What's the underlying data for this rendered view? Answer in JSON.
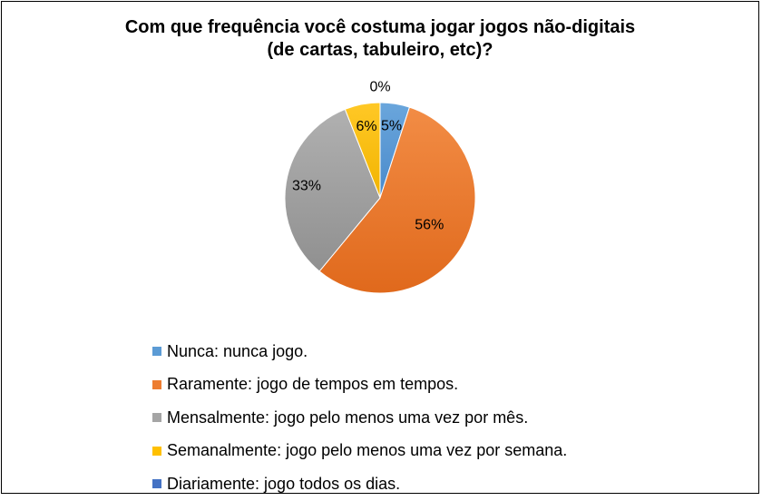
{
  "chart_data": {
    "type": "pie",
    "title": [
      "Com que frequência você costuma jogar jogos não-digitais",
      "(de cartas, tabuleiro, etc)?"
    ],
    "legend_position": "bottom",
    "series": [
      {
        "name": "Nunca: nunca jogo.",
        "value": 5,
        "label": "5%",
        "color": "#5B9BD5"
      },
      {
        "name": "Raramente: jogo de tempos em tempos.",
        "value": 56,
        "label": "56%",
        "color": "#ED7D31"
      },
      {
        "name": "Mensalmente: jogo pelo menos uma vez por mês.",
        "value": 33,
        "label": "33%",
        "color": "#A5A5A5"
      },
      {
        "name": "Semanalmente: jogo pelo menos uma vez por semana.",
        "value": 6,
        "label": "6%",
        "color": "#FFC000"
      },
      {
        "name": "Diariamente: jogo todos os dias.",
        "value": 0,
        "label": "0%",
        "color": "#4472C4"
      }
    ]
  }
}
